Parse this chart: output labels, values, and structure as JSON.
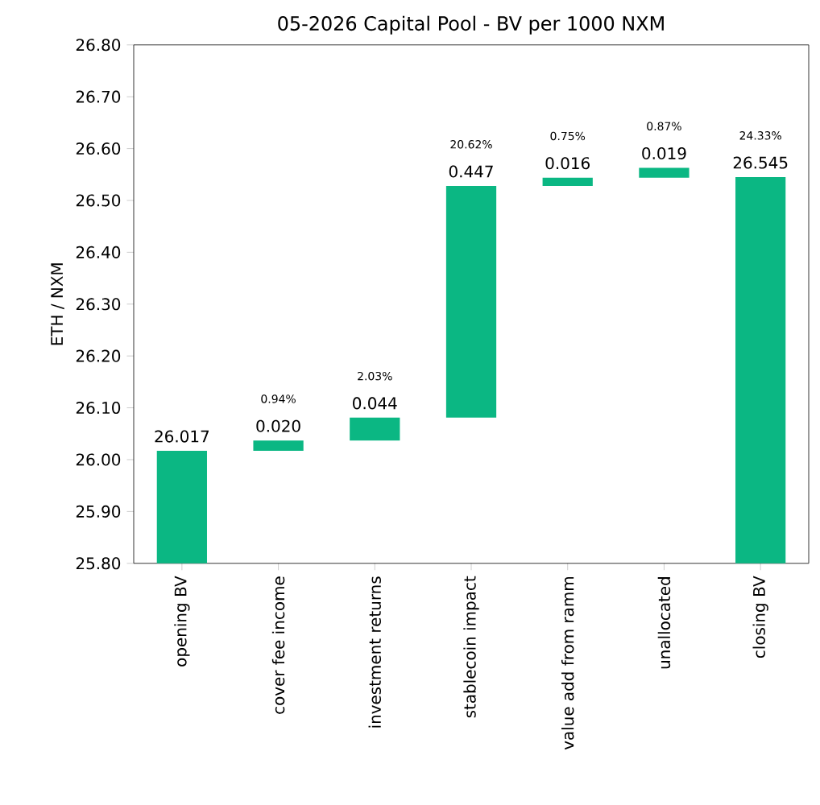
{
  "chart_data": {
    "type": "bar",
    "title": "05-2026 Capital Pool - BV per 1000 NXM",
    "ylabel": "ETH / NXM",
    "categories": [
      "opening BV",
      "cover fee income",
      "investment returns",
      "stablecoin impact",
      "value add from ramm",
      "unallocated",
      "closing BV"
    ],
    "values": [
      26.017,
      0.02,
      0.044,
      0.447,
      0.016,
      0.019,
      26.545
    ],
    "base": [
      0,
      26.017,
      26.037,
      26.081,
      26.528,
      26.544,
      0
    ],
    "value_labels": [
      "26.017",
      "0.020",
      "0.044",
      "0.447",
      "0.016",
      "0.019",
      "26.545"
    ],
    "color": "#0bb783",
    "ylim": [
      25.8,
      26.8
    ],
    "yticks": [
      {
        "value": 25.8,
        "label": "25.80"
      },
      {
        "value": 25.9,
        "label": "25.90"
      },
      {
        "value": 26.0,
        "label": "26.00"
      },
      {
        "value": 26.1,
        "label": "26.10"
      },
      {
        "value": 26.2,
        "label": "26.20"
      },
      {
        "value": 26.3,
        "label": "26.30"
      },
      {
        "value": 26.4,
        "label": "26.40"
      },
      {
        "value": 26.5,
        "label": "26.50"
      },
      {
        "value": 26.6,
        "label": "26.60"
      },
      {
        "value": 26.7,
        "label": "26.70"
      },
      {
        "value": 26.8,
        "label": "26.80"
      }
    ],
    "annotations": [
      "0.94%",
      "2.03%",
      "20.62%",
      "0.75%",
      "0.87%",
      "24.33%"
    ]
  }
}
